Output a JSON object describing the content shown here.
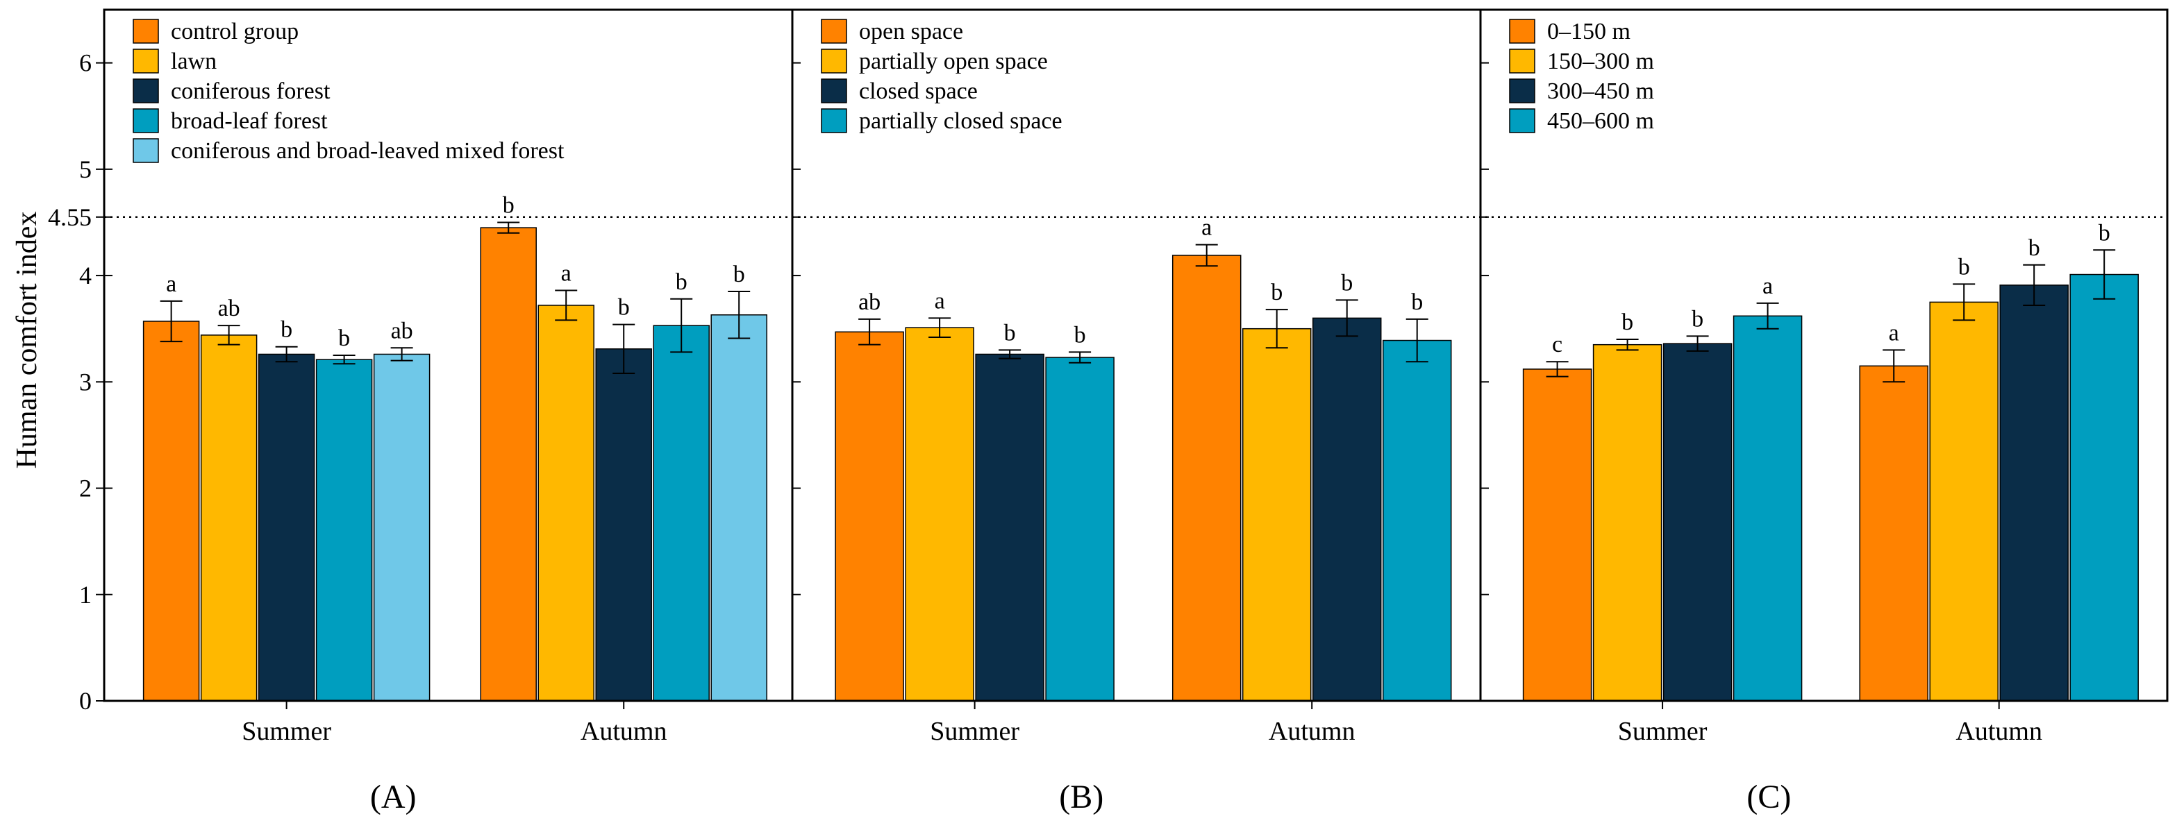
{
  "chart_data": {
    "type": "bar",
    "ylabel": "Human comfort index",
    "ylim": [
      0,
      6.5
    ],
    "yticks": [
      0,
      1,
      2,
      3,
      4,
      4.55,
      5,
      6
    ],
    "ytick_labels": [
      "0",
      "1",
      "2",
      "3",
      "4",
      "4.55",
      "5",
      "6"
    ],
    "reference_line": {
      "value": 4.55,
      "style": "dotted"
    },
    "categories": [
      "Summer",
      "Autumn"
    ],
    "panels": [
      {
        "label": "(A)",
        "series": [
          {
            "name": "control group",
            "color": "#FF8200",
            "values": [
              3.57,
              4.45
            ],
            "errors": [
              0.19,
              0.05
            ],
            "letters": [
              "a",
              "b"
            ]
          },
          {
            "name": "lawn",
            "color": "#FFB800",
            "values": [
              3.44,
              3.72
            ],
            "errors": [
              0.09,
              0.14
            ],
            "letters": [
              "ab",
              "a"
            ]
          },
          {
            "name": "coniferous forest",
            "color": "#0A2D48",
            "values": [
              3.26,
              3.31
            ],
            "errors": [
              0.07,
              0.23
            ],
            "letters": [
              "b",
              "b"
            ]
          },
          {
            "name": "broad-leaf forest",
            "color": "#009EBF",
            "values": [
              3.21,
              3.53
            ],
            "errors": [
              0.04,
              0.25
            ],
            "letters": [
              "b",
              "b"
            ]
          },
          {
            "name": "coniferous and broad-leaved mixed forest",
            "color": "#6FC8E8",
            "values": [
              3.26,
              3.63
            ],
            "errors": [
              0.06,
              0.22
            ],
            "letters": [
              "ab",
              "b"
            ]
          }
        ]
      },
      {
        "label": "(B)",
        "series": [
          {
            "name": "open space",
            "color": "#FF8200",
            "values": [
              3.47,
              4.19
            ],
            "errors": [
              0.12,
              0.1
            ],
            "letters": [
              "ab",
              "a"
            ]
          },
          {
            "name": "partially open space",
            "color": "#FFB800",
            "values": [
              3.51,
              3.5
            ],
            "errors": [
              0.09,
              0.18
            ],
            "letters": [
              "a",
              "b"
            ]
          },
          {
            "name": "closed space",
            "color": "#0A2D48",
            "values": [
              3.26,
              3.6
            ],
            "errors": [
              0.04,
              0.17
            ],
            "letters": [
              "b",
              "b"
            ]
          },
          {
            "name": "partially closed space",
            "color": "#009EBF",
            "values": [
              3.23,
              3.39
            ],
            "errors": [
              0.05,
              0.2
            ],
            "letters": [
              "b",
              "b"
            ]
          }
        ]
      },
      {
        "label": "(C)",
        "series": [
          {
            "name": "0–150 m",
            "color": "#FF8200",
            "values": [
              3.12,
              3.15
            ],
            "errors": [
              0.07,
              0.15
            ],
            "letters": [
              "c",
              "a"
            ]
          },
          {
            "name": "150–300 m",
            "color": "#FFB800",
            "values": [
              3.35,
              3.75
            ],
            "errors": [
              0.05,
              0.17
            ],
            "letters": [
              "b",
              "b"
            ]
          },
          {
            "name": "300–450 m",
            "color": "#0A2D48",
            "values": [
              3.36,
              3.91
            ],
            "errors": [
              0.07,
              0.19
            ],
            "letters": [
              "b",
              "b"
            ]
          },
          {
            "name": "450–600 m",
            "color": "#009EBF",
            "values": [
              3.62,
              4.01
            ],
            "errors": [
              0.12,
              0.23
            ],
            "letters": [
              "a",
              "b"
            ]
          }
        ]
      }
    ]
  }
}
